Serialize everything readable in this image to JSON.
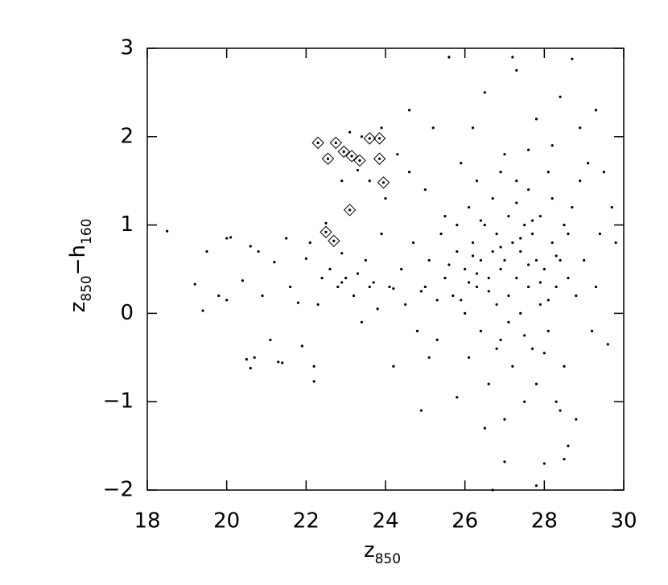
{
  "chart_data": {
    "type": "scatter",
    "xlabel": [
      "z",
      "850"
    ],
    "ylabel": [
      "z",
      "850",
      "−h",
      "160"
    ],
    "xlim": [
      18,
      30
    ],
    "ylim": [
      -2,
      3
    ],
    "xticks": [
      18,
      20,
      22,
      24,
      26,
      28,
      30
    ],
    "yticks": [
      {
        "value": -2,
        "label": "−2"
      },
      {
        "value": -1,
        "label": "−1"
      },
      0,
      1,
      2,
      3
    ],
    "series": [
      {
        "color": "#000000",
        "marker": "dot",
        "x": [
          18.5,
          19.2,
          19.4,
          19.5,
          19.8,
          20,
          20,
          20.1,
          20.4,
          20.5,
          20.6,
          20.6,
          20.7,
          20.8,
          20.9,
          21.1,
          21.2,
          21.3,
          21.4,
          21.5,
          21.6,
          21.8,
          21.9,
          22,
          22.1,
          22.2,
          22.2,
          22.3,
          22.4,
          22.5,
          22.6,
          22.8,
          22.9,
          23,
          23.1,
          23.2,
          23.3,
          23.4,
          23.5,
          23.6,
          23.7,
          23.8,
          23.9,
          24,
          24.1,
          24.2,
          24.3,
          24.4,
          24.5,
          24.6,
          24.7,
          24.8,
          24.9,
          25,
          25,
          25.1,
          25.2,
          25.3,
          25.4,
          25.5,
          25.5,
          25.6,
          25.7,
          25.8,
          25.8,
          25.9,
          26,
          26,
          26.1,
          26.1,
          26.2,
          26.2,
          26.3,
          26.3,
          26.4,
          26.4,
          26.5,
          26.5,
          26.6,
          26.6,
          26.7,
          26.7,
          26.8,
          26.8,
          26.9,
          26.9,
          27,
          27,
          27,
          27.1,
          27.1,
          27.2,
          27.2,
          27.3,
          27.3,
          27.3,
          27.4,
          27.4,
          27.5,
          27.5,
          27.6,
          27.6,
          27.7,
          27.7,
          27.8,
          27.8,
          27.9,
          27.9,
          28,
          28,
          28.1,
          28.1,
          28.2,
          28.2,
          28.3,
          28.3,
          28.4,
          28.4,
          28.5,
          28.5,
          28.6,
          28.6,
          28.7,
          28.7,
          28.8,
          28.8,
          28.9,
          29,
          29.1,
          29.2,
          29.3,
          29.4,
          29.5,
          29.6,
          29.7,
          29.8,
          27.2,
          27.0,
          27.8,
          26.7,
          28.5,
          28.4,
          25.3,
          26.3,
          26.9,
          27.6,
          27.4,
          26.6,
          26.1,
          25.9,
          27.9,
          28.3,
          27.1,
          26.4,
          27.7,
          25.6,
          24.9,
          24.2,
          23.6,
          22.9,
          23.3,
          26.8,
          27.5,
          28.1,
          26.2,
          27.3,
          28.6,
          25.8,
          24.6,
          23.9,
          23.4,
          22.9,
          26.9,
          27.6,
          28.2,
          28.9,
          29.3,
          25.1,
          26.5,
          27.8,
          28.0
        ],
        "values": [
          0.93,
          0.33,
          0.03,
          0.7,
          0.2,
          0.15,
          0.85,
          0.86,
          0.37,
          -0.52,
          -0.62,
          0.76,
          -0.5,
          0.7,
          0.2,
          -0.3,
          0.58,
          -0.55,
          -0.56,
          0.85,
          0.3,
          0.12,
          -0.37,
          0.62,
          0.8,
          -0.6,
          -0.77,
          0.1,
          0.4,
          1.02,
          0.5,
          0.3,
          0.68,
          0.4,
          2.05,
          0.2,
          1.62,
          -0.1,
          0.6,
          1.5,
          0.35,
          0.05,
          0.9,
          1.3,
          0.3,
          -0.6,
          1.8,
          0.5,
          0.1,
          2.3,
          0.8,
          -0.2,
          -1.1,
          1.4,
          0.3,
          0.6,
          2.1,
          -0.3,
          0.9,
          0.4,
          1.1,
          2.9,
          0.2,
          -0.95,
          0.7,
          1.7,
          0.5,
          0.0,
          1.2,
          -0.5,
          0.8,
          2.1,
          0.3,
          1.5,
          -0.2,
          0.6,
          2.5,
          1.0,
          0.4,
          -0.8,
          0.7,
          1.3,
          0.1,
          0.9,
          -0.3,
          0.5,
          1.8,
          0.6,
          -1.2,
          0.2,
          1.1,
          0.8,
          -0.6,
          0.4,
          2.75,
          1.5,
          0.0,
          0.7,
          1.0,
          -1.0,
          0.3,
          1.4,
          0.9,
          -0.4,
          0.6,
          2.2,
          1.1,
          0.1,
          -1.7,
          0.5,
          1.6,
          -0.2,
          0.8,
          1.3,
          0.3,
          -1.0,
          0.6,
          2.45,
          -0.6,
          1.0,
          -1.5,
          0.4,
          2.88,
          1.2,
          -1.2,
          0.2,
          2.1,
          0.6,
          1.7,
          -0.2,
          2.3,
          0.9,
          1.6,
          -0.35,
          1.2,
          0.8,
          2.9,
          -1.68,
          -1.95,
          -2.0,
          -1.65,
          -1.1,
          0.15,
          0.45,
          0.75,
          0.55,
          0.85,
          0.25,
          0.35,
          0.15,
          0.35,
          0.65,
          -0.1,
          1.05,
          1.05,
          0.55,
          0.25,
          0.28,
          0.3,
          0.35,
          0.45,
          -0.4,
          -0.25,
          0.15,
          0.65,
          1.25,
          0.9,
          1.0,
          1.6,
          2.1,
          2.0,
          1.5,
          1.6,
          1.85,
          1.9,
          1.5,
          0.3,
          -0.5,
          -1.3,
          -0.8,
          -0.45
        ]
      },
      {
        "color": "#000000",
        "marker": "diamond",
        "x": [
          22.3,
          22.55,
          22.75,
          22.95,
          23.15,
          23.35,
          23.6,
          23.85,
          23.85,
          23.95,
          23.1,
          22.5,
          22.7
        ],
        "values": [
          1.93,
          1.75,
          1.93,
          1.83,
          1.78,
          1.73,
          1.98,
          1.98,
          1.75,
          1.48,
          1.17,
          0.92,
          0.82
        ]
      }
    ]
  }
}
